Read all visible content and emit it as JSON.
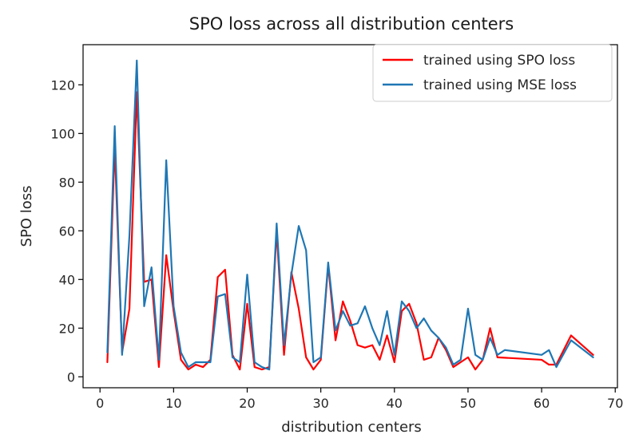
{
  "chart_data": {
    "type": "line",
    "title": "SPO loss across all distribution centers",
    "xlabel": "distribution centers",
    "ylabel": "SPO loss",
    "xlim": [
      -2.3,
      70.3
    ],
    "ylim": [
      -4.5,
      136.5
    ],
    "xticks": [
      0,
      10,
      20,
      30,
      40,
      50,
      60,
      70
    ],
    "yticks": [
      0,
      20,
      40,
      60,
      80,
      100,
      120
    ],
    "grid": false,
    "legend_position": "upper right",
    "series": [
      {
        "name": "trained using SPO loss",
        "color": "#ff0000",
        "x": [
          1,
          2,
          3,
          4,
          5,
          6,
          7,
          8,
          9,
          10,
          11,
          12,
          13,
          14,
          15,
          16,
          17,
          18,
          19,
          20,
          21,
          22,
          23,
          24,
          25,
          26,
          27,
          28,
          29,
          30,
          31,
          32,
          33,
          34,
          35,
          36,
          37,
          38,
          39,
          40,
          41,
          42,
          43,
          44,
          45,
          46,
          47,
          48,
          49,
          50,
          51,
          52,
          53,
          54,
          60,
          61,
          62,
          64,
          67
        ],
        "y": [
          6,
          95,
          10,
          28,
          117,
          39,
          40,
          4,
          50,
          27,
          7,
          3,
          5,
          4,
          7,
          41,
          44,
          9,
          3,
          30,
          4,
          3,
          4,
          60,
          9,
          43,
          28,
          8,
          3,
          7,
          46,
          15,
          31,
          23,
          13,
          12,
          13,
          7,
          17,
          6,
          27,
          30,
          22,
          7,
          8,
          16,
          11,
          4,
          6,
          8,
          3,
          7,
          20,
          8,
          7,
          5,
          5,
          17,
          9
        ]
      },
      {
        "name": "trained using MSE loss",
        "color": "#1f77b4",
        "x": [
          1,
          2,
          3,
          4,
          5,
          6,
          7,
          8,
          9,
          10,
          11,
          12,
          13,
          14,
          15,
          16,
          17,
          18,
          19,
          20,
          21,
          22,
          23,
          24,
          25,
          26,
          27,
          28,
          29,
          30,
          31,
          32,
          33,
          34,
          35,
          36,
          37,
          38,
          39,
          40,
          41,
          42,
          43,
          44,
          45,
          46,
          47,
          48,
          49,
          50,
          51,
          52,
          53,
          54,
          55,
          60,
          61,
          62,
          64,
          67
        ],
        "y": [
          10,
          103,
          9,
          58,
          130,
          29,
          45,
          7,
          89,
          29,
          10,
          4,
          6,
          6,
          6,
          33,
          34,
          8,
          6,
          42,
          6,
          4,
          3,
          63,
          13,
          42,
          62,
          52,
          6,
          8,
          47,
          19,
          27,
          21,
          22,
          29,
          20,
          13,
          27,
          9,
          31,
          27,
          20,
          24,
          19,
          16,
          12,
          5,
          7,
          28,
          9,
          7,
          16,
          9,
          11,
          9,
          11,
          4,
          15,
          8
        ]
      }
    ]
  }
}
